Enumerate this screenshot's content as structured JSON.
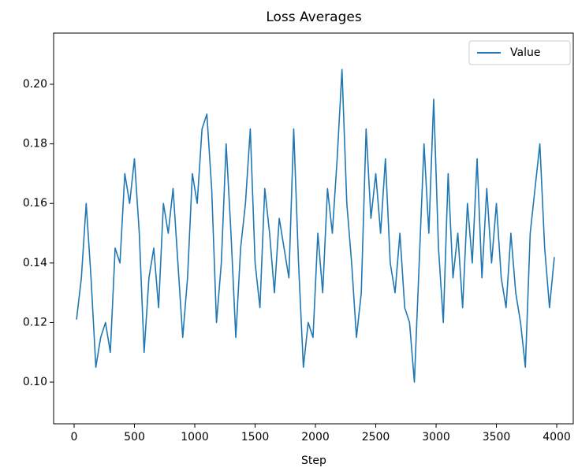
{
  "chart_data": {
    "type": "line",
    "title": "Loss Averages",
    "x_label": "Step",
    "x": [
      20,
      60,
      100,
      140,
      180,
      220,
      260,
      300,
      340,
      380,
      420,
      460,
      500,
      540,
      580,
      620,
      660,
      700,
      740,
      780,
      820,
      860,
      900,
      940,
      980,
      1020,
      1060,
      1100,
      1140,
      1180,
      1220,
      1260,
      1300,
      1340,
      1380,
      1420,
      1460,
      1500,
      1540,
      1580,
      1620,
      1660,
      1700,
      1740,
      1780,
      1820,
      1860,
      1900,
      1940,
      1980,
      2020,
      2060,
      2100,
      2140,
      2180,
      2220,
      2260,
      2300,
      2340,
      2380,
      2420,
      2460,
      2500,
      2540,
      2580,
      2620,
      2660,
      2700,
      2740,
      2780,
      2820,
      2860,
      2900,
      2940,
      2980,
      3020,
      3060,
      3100,
      3140,
      3180,
      3220,
      3260,
      3300,
      3340,
      3380,
      3420,
      3460,
      3500,
      3540,
      3580,
      3620,
      3660,
      3700,
      3740,
      3780,
      3820,
      3860,
      3900,
      3940,
      3980
    ],
    "series": [
      {
        "name": "Value",
        "color": "#1f77b4",
        "values": [
          0.121,
          0.135,
          0.16,
          0.135,
          0.105,
          0.115,
          0.12,
          0.11,
          0.145,
          0.14,
          0.17,
          0.16,
          0.175,
          0.15,
          0.11,
          0.135,
          0.145,
          0.125,
          0.16,
          0.15,
          0.165,
          0.14,
          0.115,
          0.135,
          0.17,
          0.16,
          0.185,
          0.19,
          0.165,
          0.12,
          0.14,
          0.18,
          0.15,
          0.115,
          0.145,
          0.16,
          0.185,
          0.14,
          0.125,
          0.165,
          0.15,
          0.13,
          0.155,
          0.145,
          0.135,
          0.185,
          0.14,
          0.105,
          0.12,
          0.115,
          0.15,
          0.13,
          0.165,
          0.15,
          0.175,
          0.205,
          0.16,
          0.14,
          0.115,
          0.13,
          0.185,
          0.155,
          0.17,
          0.15,
          0.175,
          0.14,
          0.13,
          0.15,
          0.125,
          0.12,
          0.1,
          0.14,
          0.18,
          0.15,
          0.195,
          0.145,
          0.12,
          0.17,
          0.135,
          0.15,
          0.125,
          0.16,
          0.14,
          0.175,
          0.135,
          0.165,
          0.14,
          0.16,
          0.135,
          0.125,
          0.15,
          0.13,
          0.12,
          0.105,
          0.15,
          0.165,
          0.18,
          0.145,
          0.125,
          0.142
        ]
      }
    ],
    "xlim": [
      -170,
      4137
    ],
    "xticks": [
      0,
      500,
      1000,
      1500,
      2000,
      2500,
      3000,
      3500,
      4000
    ],
    "ylim": [
      0.086,
      0.2172
    ],
    "yticks": [
      {
        "value": 0.1,
        "label": "0.10"
      },
      0.12,
      0.14,
      0.16,
      0.18,
      {
        "value": 0.2,
        "label": "0.20"
      }
    ],
    "legend": "upper right"
  }
}
